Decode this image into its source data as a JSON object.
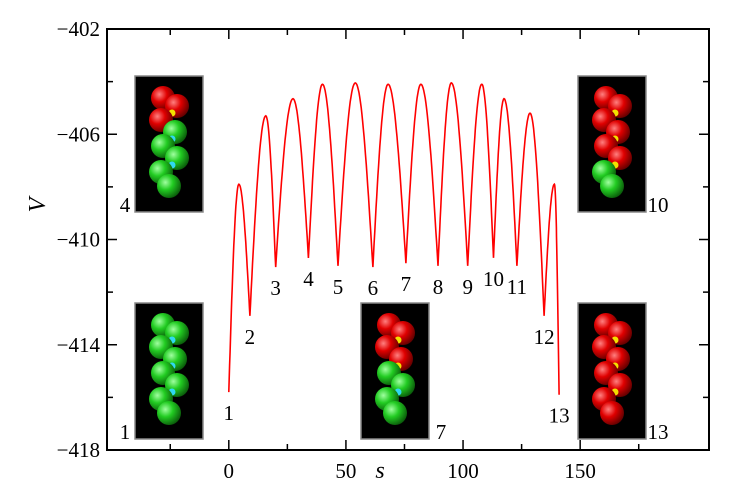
{
  "chart_data": {
    "type": "line",
    "title": "",
    "xlabel": "s",
    "ylabel": "V",
    "xlim": [
      -52,
      205
    ],
    "ylim": [
      -418,
      -402
    ],
    "x_ticks": [
      0,
      50,
      100,
      150
    ],
    "x_tick_labels": [
      "0",
      "50",
      "100",
      "150"
    ],
    "x_minor_ticks": [
      -25,
      25,
      75,
      125,
      175
    ],
    "y_ticks": [
      -402,
      -406,
      -410,
      -414,
      -418
    ],
    "y_tick_labels": [
      "−402",
      "−406",
      "−410",
      "−414",
      "−418"
    ],
    "y_minor_ticks": [
      -404,
      -408,
      -412,
      -416
    ],
    "grid": false,
    "series": [
      {
        "name": "V(s)",
        "color": "#ff0000",
        "extrema": [
          {
            "x": 0,
            "y": -415.8,
            "kind": "min"
          },
          {
            "x": 4.3,
            "y": -407.9,
            "kind": "max"
          },
          {
            "x": 9,
            "y": -412.9,
            "kind": "min"
          },
          {
            "x": 15.8,
            "y": -405.3,
            "kind": "max"
          },
          {
            "x": 20,
            "y": -411.05,
            "kind": "min"
          },
          {
            "x": 27.4,
            "y": -404.65,
            "kind": "max"
          },
          {
            "x": 34,
            "y": -410.7,
            "kind": "min"
          },
          {
            "x": 40,
            "y": -404.1,
            "kind": "max"
          },
          {
            "x": 46.6,
            "y": -411.0,
            "kind": "min"
          },
          {
            "x": 54,
            "y": -404.05,
            "kind": "max"
          },
          {
            "x": 61.5,
            "y": -411.05,
            "kind": "min"
          },
          {
            "x": 68,
            "y": -404.1,
            "kind": "max"
          },
          {
            "x": 75.6,
            "y": -410.9,
            "kind": "min"
          },
          {
            "x": 82,
            "y": -404.1,
            "kind": "max"
          },
          {
            "x": 89.3,
            "y": -411.0,
            "kind": "min"
          },
          {
            "x": 95,
            "y": -404.05,
            "kind": "max"
          },
          {
            "x": 102,
            "y": -411.0,
            "kind": "min"
          },
          {
            "x": 108,
            "y": -404.1,
            "kind": "max"
          },
          {
            "x": 113,
            "y": -410.7,
            "kind": "min"
          },
          {
            "x": 117.5,
            "y": -404.65,
            "kind": "max"
          },
          {
            "x": 123,
            "y": -411.0,
            "kind": "min"
          },
          {
            "x": 128.6,
            "y": -405.2,
            "kind": "max"
          },
          {
            "x": 134.6,
            "y": -412.9,
            "kind": "min"
          },
          {
            "x": 139,
            "y": -407.9,
            "kind": "max"
          },
          {
            "x": 141,
            "y": -415.9,
            "kind": "min"
          }
        ]
      }
    ],
    "annotations": [
      {
        "text": "1",
        "x": 0,
        "y": -415.8
      },
      {
        "text": "2",
        "x": 9,
        "y": -412.9
      },
      {
        "text": "3",
        "x": 20,
        "y": -411.05
      },
      {
        "text": "4",
        "x": 34,
        "y": -410.7
      },
      {
        "text": "5",
        "x": 46.6,
        "y": -411.0
      },
      {
        "text": "6",
        "x": 61.5,
        "y": -411.05
      },
      {
        "text": "7",
        "x": 75.6,
        "y": -410.9
      },
      {
        "text": "8",
        "x": 89.3,
        "y": -411.0
      },
      {
        "text": "9",
        "x": 102,
        "y": -411.0
      },
      {
        "text": "10",
        "x": 113,
        "y": -410.7
      },
      {
        "text": "11",
        "x": 123,
        "y": -411.0
      },
      {
        "text": "12",
        "x": 134.6,
        "y": -412.9
      },
      {
        "text": "13",
        "x": 141,
        "y": -415.9
      }
    ],
    "insets": [
      {
        "label": "4",
        "red_spheres": 3,
        "small_colors": [
          "#f3e000",
          "#30d8f0"
        ],
        "pos": "top-left"
      },
      {
        "label": "1",
        "red_spheres": 0,
        "small_colors": [
          "#30d8f0",
          "#30d8f0"
        ],
        "pos": "bottom-left"
      },
      {
        "label": "7",
        "red_spheres": 4,
        "small_colors": [
          "#f3e000",
          "#30d8f0"
        ],
        "pos": "bottom-center"
      },
      {
        "label": "10",
        "red_spheres": 6,
        "small_colors": [
          "#f3e000",
          "#f3e000"
        ],
        "pos": "top-right"
      },
      {
        "label": "13",
        "red_spheres": 8,
        "small_colors": [
          "#f3e000",
          "#f3e000"
        ],
        "pos": "bottom-right"
      }
    ]
  }
}
